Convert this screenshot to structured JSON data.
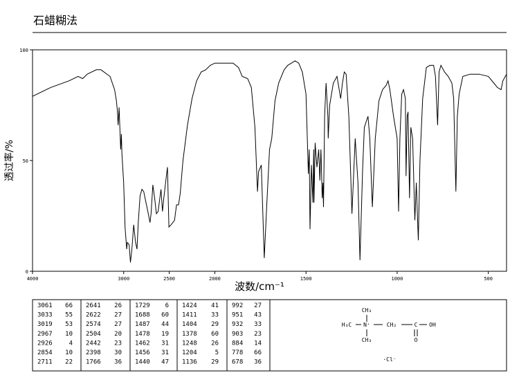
{
  "chart_data": {
    "type": "line",
    "title": "石蜡糊法",
    "xlabel": "波数/cm⁻¹",
    "ylabel": "透过率/%",
    "xlim": [
      4000,
      400
    ],
    "xbreak": 2000,
    "ylim": [
      0,
      100
    ],
    "xticks": [
      4000,
      3000,
      2500,
      2000,
      1500,
      1000,
      500
    ],
    "yticks": [
      0,
      50,
      100
    ],
    "color": "#000000",
    "x": [
      4000,
      3800,
      3600,
      3500,
      3450,
      3400,
      3300,
      3250,
      3150,
      3100,
      3080,
      3070,
      3061,
      3050,
      3033,
      3025,
      3019,
      3000,
      2985,
      2967,
      2960,
      2940,
      2926,
      2910,
      2890,
      2870,
      2854,
      2840,
      2820,
      2800,
      2780,
      2760,
      2740,
      2711,
      2700,
      2680,
      2660,
      2641,
      2622,
      2600,
      2590,
      2574,
      2560,
      2540,
      2520,
      2504,
      2480,
      2442,
      2420,
      2398,
      2380,
      2350,
      2300,
      2250,
      2200,
      2150,
      2100,
      2050,
      2000,
      1950,
      1900,
      1870,
      1850,
      1820,
      1800,
      1780,
      1766,
      1760,
      1745,
      1729,
      1715,
      1700,
      1688,
      1670,
      1650,
      1620,
      1600,
      1560,
      1540,
      1520,
      1500,
      1487,
      1482,
      1478,
      1470,
      1462,
      1458,
      1456,
      1450,
      1440,
      1430,
      1424,
      1418,
      1411,
      1407,
      1404,
      1398,
      1390,
      1380,
      1378,
      1370,
      1350,
      1330,
      1310,
      1300,
      1290,
      1280,
      1265,
      1248,
      1230,
      1215,
      1204,
      1190,
      1180,
      1160,
      1150,
      1136,
      1120,
      1100,
      1080,
      1060,
      1050,
      1040,
      1020,
      1000,
      992,
      985,
      975,
      965,
      955,
      951,
      945,
      940,
      932,
      925,
      915,
      903,
      895,
      884,
      875,
      860,
      840,
      820,
      800,
      790,
      778,
      770,
      760,
      740,
      720,
      700,
      690,
      678,
      670,
      660,
      640,
      600,
      550,
      500,
      470,
      450,
      430,
      420,
      400
    ],
    "values": [
      79,
      83,
      86,
      88,
      87,
      89,
      91,
      91,
      88,
      82,
      77,
      73,
      66,
      74,
      55,
      62,
      53,
      40,
      20,
      10,
      13,
      12,
      4,
      10,
      21,
      13,
      10,
      22,
      34,
      37,
      36,
      32,
      28,
      22,
      26,
      39,
      33,
      26,
      27,
      34,
      37,
      27,
      33,
      40,
      47,
      20,
      21,
      23,
      30,
      30,
      35,
      50,
      66,
      78,
      86,
      90,
      91,
      93,
      94,
      94,
      94,
      92,
      88,
      87,
      83,
      65,
      36,
      45,
      48,
      6,
      30,
      55,
      60,
      77,
      85,
      91,
      93,
      95,
      94,
      90,
      80,
      44,
      55,
      19,
      48,
      31,
      55,
      31,
      58,
      47,
      55,
      41,
      55,
      33,
      40,
      29,
      70,
      85,
      70,
      60,
      75,
      85,
      88,
      78,
      85,
      90,
      89,
      70,
      26,
      60,
      40,
      5,
      45,
      65,
      70,
      60,
      29,
      60,
      77,
      82,
      84,
      86,
      82,
      70,
      60,
      27,
      60,
      80,
      82,
      78,
      43,
      70,
      72,
      33,
      65,
      60,
      23,
      40,
      14,
      50,
      78,
      92,
      93,
      93,
      88,
      66,
      90,
      93,
      90,
      88,
      85,
      78,
      36,
      70,
      80,
      88,
      89,
      89,
      88,
      85,
      83,
      82,
      86,
      89
    ]
  },
  "peak_table": {
    "columns": [
      [
        [
          3061,
          66
        ],
        [
          3033,
          55
        ],
        [
          3019,
          53
        ],
        [
          2967,
          10
        ],
        [
          2926,
          4
        ],
        [
          2854,
          10
        ],
        [
          2711,
          22
        ]
      ],
      [
        [
          2641,
          26
        ],
        [
          2622,
          27
        ],
        [
          2574,
          27
        ],
        [
          2504,
          20
        ],
        [
          2442,
          23
        ],
        [
          2398,
          30
        ],
        [
          1766,
          36
        ]
      ],
      [
        [
          1729,
          6
        ],
        [
          1688,
          60
        ],
        [
          1487,
          44
        ],
        [
          1478,
          19
        ],
        [
          1462,
          31
        ],
        [
          1456,
          31
        ],
        [
          1440,
          47
        ]
      ],
      [
        [
          1424,
          41
        ],
        [
          1411,
          33
        ],
        [
          1404,
          29
        ],
        [
          1378,
          60
        ],
        [
          1248,
          26
        ],
        [
          1204,
          5
        ],
        [
          1136,
          29
        ]
      ],
      [
        [
          992,
          27
        ],
        [
          951,
          43
        ],
        [
          932,
          33
        ],
        [
          903,
          23
        ],
        [
          884,
          14
        ],
        [
          778,
          66
        ],
        [
          678,
          36
        ]
      ]
    ]
  },
  "structure": {
    "top": "CH₃",
    "left": "H₃C",
    "center": "N⁺",
    "chain": "CH₂",
    "carbon": "C",
    "acid": "OH",
    "oxygen": "O",
    "bottom": "CH₃",
    "counter_ion": "·Cl⁻"
  }
}
